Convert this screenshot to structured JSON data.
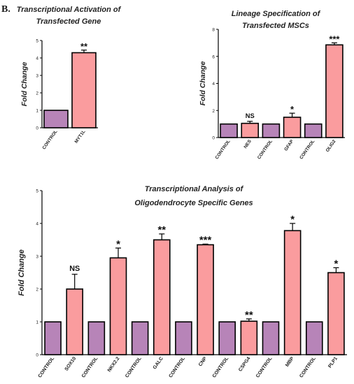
{
  "panel_label": "B.",
  "colors": {
    "control": "#b784b8",
    "treated": "#fa9c9e",
    "stroke": "#000000"
  },
  "chart_data": [
    {
      "type": "bar",
      "title_lines": [
        "Transcriptional Activation of",
        "Transfected Gene"
      ],
      "ylabel": "Fold Change",
      "ylim": [
        0,
        5
      ],
      "yticks": [
        0,
        1,
        2,
        3,
        4,
        5
      ],
      "categories": [
        "CONTROL",
        "MYT1L"
      ],
      "values": [
        1.0,
        4.3
      ],
      "errors": [
        0,
        0.15
      ],
      "groups": [
        "control",
        "treated"
      ],
      "significance": [
        "",
        "**"
      ]
    },
    {
      "type": "bar",
      "title_lines": [
        "Lineage Specification of",
        "Transfected MSCs"
      ],
      "ylabel": "Fold Change",
      "ylim": [
        0,
        8
      ],
      "yticks": [
        0,
        2,
        4,
        6,
        8
      ],
      "categories": [
        "CONTROL",
        "NES",
        "CONTROL",
        "GFAP",
        "CONTROL",
        "OLIG2"
      ],
      "values": [
        1.0,
        1.05,
        1.0,
        1.5,
        1.0,
        6.85
      ],
      "errors": [
        0,
        0.15,
        0,
        0.3,
        0,
        0.15
      ],
      "groups": [
        "control",
        "treated",
        "control",
        "treated",
        "control",
        "treated"
      ],
      "significance": [
        "",
        "NS",
        "",
        "*",
        "",
        "***"
      ]
    },
    {
      "type": "bar",
      "title_lines": [
        "Transcriptional Analysis of",
        "Oligodendrocyte Specific Genes"
      ],
      "ylabel": "Fold Change",
      "ylim": [
        0,
        5
      ],
      "yticks": [
        0,
        1,
        2,
        3,
        4,
        5
      ],
      "categories": [
        "CONTROL",
        "SOX10",
        "CONTROL",
        "NKX2.2",
        "CONTROL",
        "GALC",
        "CONTROL",
        "CNP",
        "CONTROL",
        "CSPG4",
        "CONTROL",
        "MBP",
        "CONTROL",
        "PLP1"
      ],
      "values": [
        1.0,
        2.0,
        1.0,
        2.95,
        1.0,
        3.5,
        1.0,
        3.35,
        1.0,
        1.02,
        1.0,
        3.78,
        1.0,
        2.5
      ],
      "errors": [
        0,
        0.45,
        0,
        0.3,
        0,
        0.18,
        0,
        0.02,
        0,
        0.07,
        0,
        0.22,
        0,
        0.15
      ],
      "groups": [
        "control",
        "treated",
        "control",
        "treated",
        "control",
        "treated",
        "control",
        "treated",
        "control",
        "treated",
        "control",
        "treated",
        "control",
        "treated"
      ],
      "significance": [
        "",
        "NS",
        "",
        "*",
        "",
        "**",
        "",
        "***",
        "",
        "**",
        "",
        "*",
        "",
        "*"
      ]
    }
  ]
}
